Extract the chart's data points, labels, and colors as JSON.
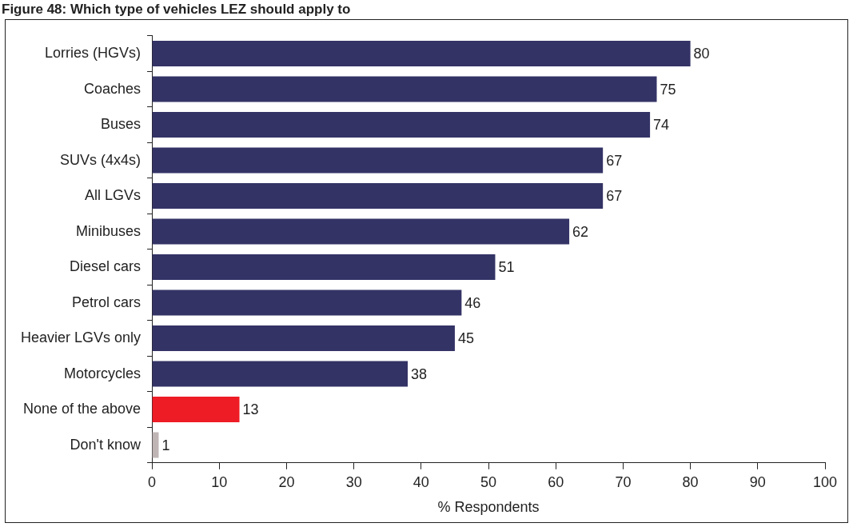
{
  "chart_data": {
    "type": "bar",
    "orientation": "horizontal",
    "title": "Figure 48: Which type of vehicles LEZ should apply to",
    "xlabel": "% Respondents",
    "categories": [
      "Lorries (HGVs)",
      "Coaches",
      "Buses",
      "SUVs (4x4s)",
      "All LGVs",
      "Minibuses",
      "Diesel cars",
      "Petrol cars",
      "Heavier LGVs only",
      "Motorcycles",
      "None of the above",
      "Don't know"
    ],
    "values": [
      80,
      75,
      74,
      67,
      67,
      62,
      51,
      46,
      45,
      38,
      13,
      1
    ],
    "colors": [
      "#333366",
      "#333366",
      "#333366",
      "#333366",
      "#333366",
      "#333366",
      "#333366",
      "#333366",
      "#333366",
      "#333366",
      "#ee1c24",
      "#bfb5b5"
    ],
    "xlim": [
      0,
      100
    ],
    "xticks": [
      0,
      10,
      20,
      30,
      40,
      50,
      60,
      70,
      80,
      90,
      100
    ],
    "grid": false,
    "legend": false,
    "data_labels": true
  }
}
